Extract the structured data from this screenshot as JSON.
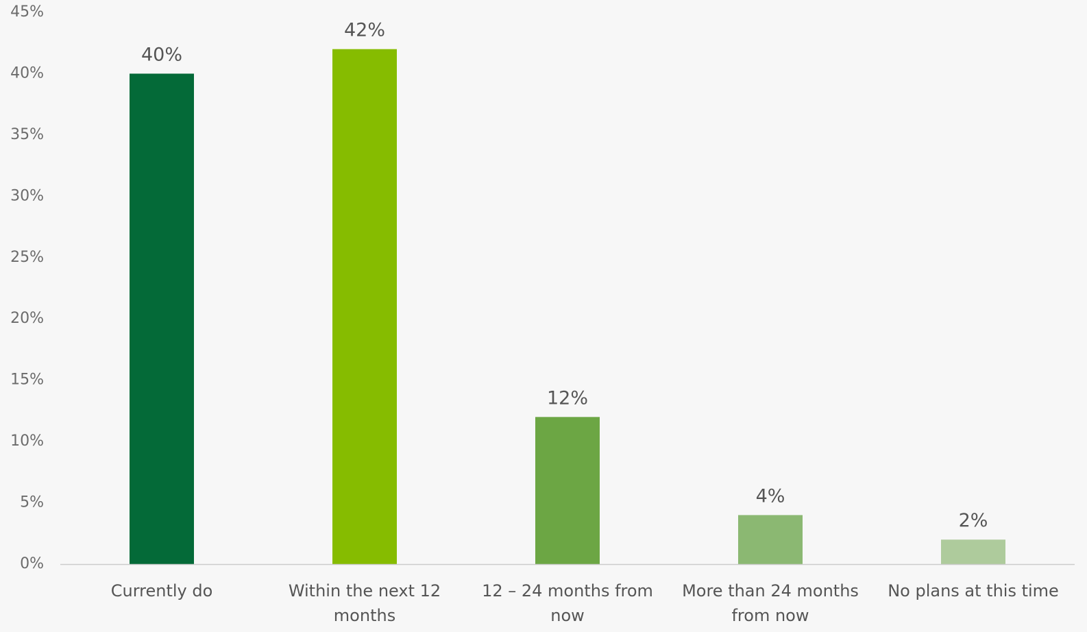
{
  "chart_data": {
    "type": "bar",
    "categories": [
      "Currently do",
      "Within the next 12 months",
      "12 – 24 months from now",
      "More than 24 months from now",
      "No plans at this time"
    ],
    "values": [
      40,
      42,
      12,
      4,
      2
    ],
    "data_labels": [
      "40%",
      "42%",
      "12%",
      "4%",
      "2%"
    ],
    "bar_colors": [
      "#046a38",
      "#86bc00",
      "#6ca644",
      "#8bb872",
      "#aecb9c"
    ],
    "title": "",
    "xlabel": "",
    "ylabel": "",
    "ylim": [
      0,
      45
    ],
    "y_ticks": [
      0,
      5,
      10,
      15,
      20,
      25,
      30,
      35,
      40,
      45
    ],
    "y_tick_labels": [
      "0%",
      "5%",
      "10%",
      "15%",
      "20%",
      "25%",
      "30%",
      "35%",
      "40%",
      "45%"
    ],
    "grid": false,
    "legend": "none",
    "background_color": "#f7f7f7",
    "axis_color": "#cccccc"
  }
}
